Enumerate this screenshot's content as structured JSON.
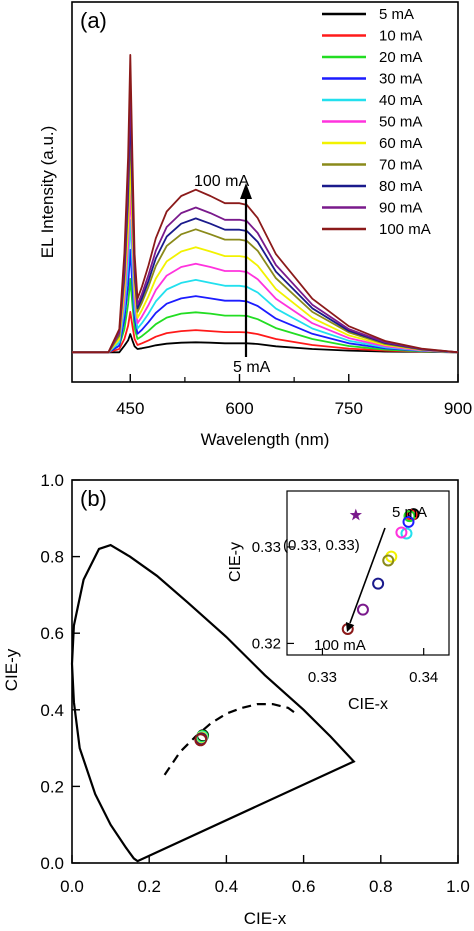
{
  "panels": {
    "a_label": "(a)",
    "b_label": "(b)"
  },
  "chart_data": [
    {
      "type": "line",
      "panel": "(a)",
      "xlabel": "Wavelength (nm)",
      "ylabel": "EL Intensity (a.u.)",
      "xlim": [
        370,
        900
      ],
      "ylim": [
        -0.09,
        1.06
      ],
      "xticks": [
        450,
        600,
        750,
        900
      ],
      "xtick_labels": [
        "450",
        "600",
        "750",
        "900"
      ],
      "grid": false,
      "legend_position": "top-right",
      "annotations": {
        "arrow_top": "100 mA",
        "arrow_bottom": "5 mA"
      },
      "x": [
        370,
        420,
        435,
        442,
        447,
        450,
        453,
        456,
        460,
        466,
        475,
        485,
        500,
        520,
        540,
        560,
        580,
        600,
        610,
        625,
        650,
        700,
        750,
        800,
        850,
        900
      ],
      "series": [
        {
          "name": "5 mA",
          "color": "#000000",
          "values": [
            0.0,
            0.0,
            0.0,
            0.02,
            0.036,
            0.055,
            0.036,
            0.018,
            0.01,
            0.012,
            0.016,
            0.021,
            0.026,
            0.029,
            0.03,
            0.029,
            0.027,
            0.027,
            0.027,
            0.025,
            0.018,
            0.01,
            0.005,
            0.002,
            0.001,
            0.0
          ]
        },
        {
          "name": "10 mA",
          "color": "#ff1a1a",
          "values": [
            0.0,
            0.0,
            0.01,
            0.04,
            0.08,
            0.122,
            0.08,
            0.04,
            0.022,
            0.027,
            0.036,
            0.047,
            0.058,
            0.064,
            0.067,
            0.064,
            0.061,
            0.061,
            0.06,
            0.055,
            0.04,
            0.022,
            0.011,
            0.005,
            0.002,
            0.0
          ]
        },
        {
          "name": "20 mA",
          "color": "#22dd22",
          "values": [
            0.0,
            0.0,
            0.02,
            0.07,
            0.145,
            0.222,
            0.145,
            0.073,
            0.04,
            0.049,
            0.065,
            0.085,
            0.105,
            0.117,
            0.121,
            0.117,
            0.111,
            0.111,
            0.11,
            0.1,
            0.073,
            0.04,
            0.019,
            0.008,
            0.003,
            0.0
          ]
        },
        {
          "name": "30 mA",
          "color": "#1c1cff",
          "values": [
            0.0,
            0.0,
            0.02,
            0.1,
            0.203,
            0.31,
            0.203,
            0.102,
            0.056,
            0.068,
            0.091,
            0.119,
            0.147,
            0.163,
            0.17,
            0.163,
            0.156,
            0.156,
            0.154,
            0.14,
            0.102,
            0.056,
            0.027,
            0.012,
            0.004,
            0.0
          ]
        },
        {
          "name": "40 mA",
          "color": "#22e0ee",
          "values": [
            0.0,
            0.0,
            0.03,
            0.13,
            0.262,
            0.4,
            0.262,
            0.132,
            0.072,
            0.088,
            0.117,
            0.154,
            0.19,
            0.21,
            0.219,
            0.21,
            0.201,
            0.201,
            0.198,
            0.181,
            0.132,
            0.072,
            0.035,
            0.015,
            0.005,
            0.0
          ]
        },
        {
          "name": "50 mA",
          "color": "#ff33dd",
          "values": [
            0.0,
            0.0,
            0.04,
            0.16,
            0.321,
            0.49,
            0.321,
            0.162,
            0.088,
            0.108,
            0.143,
            0.188,
            0.232,
            0.258,
            0.268,
            0.258,
            0.246,
            0.246,
            0.243,
            0.221,
            0.162,
            0.088,
            0.043,
            0.018,
            0.006,
            0.0
          ]
        },
        {
          "name": "60 mA",
          "color": "#f2f200",
          "values": [
            0.0,
            0.0,
            0.04,
            0.19,
            0.38,
            0.58,
            0.38,
            0.191,
            0.104,
            0.128,
            0.17,
            0.223,
            0.275,
            0.305,
            0.318,
            0.305,
            0.291,
            0.291,
            0.288,
            0.262,
            0.191,
            0.104,
            0.051,
            0.022,
            0.007,
            0.0
          ]
        },
        {
          "name": "70 mA",
          "color": "#8a8a1a",
          "values": [
            0.0,
            0.0,
            0.05,
            0.22,
            0.445,
            0.68,
            0.445,
            0.224,
            0.122,
            0.15,
            0.199,
            0.261,
            0.322,
            0.357,
            0.372,
            0.357,
            0.341,
            0.341,
            0.337,
            0.307,
            0.224,
            0.122,
            0.06,
            0.025,
            0.008,
            0.0
          ]
        },
        {
          "name": "80 mA",
          "color": "#1a1a8c",
          "values": [
            0.0,
            0.0,
            0.06,
            0.24,
            0.485,
            0.74,
            0.485,
            0.244,
            0.133,
            0.163,
            0.216,
            0.284,
            0.35,
            0.389,
            0.405,
            0.389,
            0.371,
            0.371,
            0.367,
            0.334,
            0.244,
            0.133,
            0.065,
            0.028,
            0.009,
            0.0
          ]
        },
        {
          "name": "90 mA",
          "color": "#7a1a8c",
          "values": [
            0.0,
            0.0,
            0.06,
            0.26,
            0.524,
            0.8,
            0.524,
            0.264,
            0.144,
            0.176,
            0.234,
            0.307,
            0.379,
            0.421,
            0.438,
            0.421,
            0.401,
            0.401,
            0.397,
            0.361,
            0.264,
            0.144,
            0.07,
            0.03,
            0.01,
            0.0
          ]
        },
        {
          "name": "100 mA",
          "color": "#8b1a1a",
          "values": [
            0.0,
            0.0,
            0.07,
            0.3,
            0.59,
            0.9,
            0.59,
            0.297,
            0.162,
            0.198,
            0.263,
            0.345,
            0.426,
            0.473,
            0.492,
            0.473,
            0.451,
            0.451,
            0.446,
            0.406,
            0.297,
            0.162,
            0.079,
            0.034,
            0.011,
            0.0
          ]
        }
      ]
    },
    {
      "type": "scatter",
      "panel": "(b)",
      "xlabel": "CIE-x",
      "ylabel": "CIE-y",
      "xlim": [
        0.0,
        1.0
      ],
      "ylim": [
        0.0,
        1.0
      ],
      "xticks": [
        0.0,
        0.2,
        0.4,
        0.6,
        0.8,
        1.0
      ],
      "xtick_labels": [
        "0.0",
        "0.2",
        "0.4",
        "0.6",
        "0.8",
        "1.0"
      ],
      "yticks": [
        0.0,
        0.2,
        0.4,
        0.6,
        0.8,
        1.0
      ],
      "ytick_labels": [
        "0.0",
        "0.2",
        "0.4",
        "0.6",
        "0.8",
        "1.0"
      ],
      "grid": false,
      "spectral_locus": {
        "x": [
          0.17,
          0.16,
          0.14,
          0.1,
          0.06,
          0.02,
          0.005,
          0.0,
          0.005,
          0.03,
          0.07,
          0.1,
          0.15,
          0.22,
          0.3,
          0.4,
          0.5,
          0.6,
          0.67,
          0.73
        ],
        "y": [
          0.005,
          0.012,
          0.04,
          0.1,
          0.18,
          0.3,
          0.42,
          0.52,
          0.62,
          0.74,
          0.82,
          0.83,
          0.8,
          0.75,
          0.68,
          0.59,
          0.49,
          0.4,
          0.33,
          0.265
        ]
      },
      "planckian_locus": {
        "x": [
          0.24,
          0.28,
          0.32,
          0.36,
          0.4,
          0.44,
          0.48,
          0.52,
          0.56,
          0.58
        ],
        "y": [
          0.23,
          0.29,
          0.33,
          0.365,
          0.39,
          0.405,
          0.415,
          0.415,
          0.405,
          0.39
        ]
      },
      "points": {
        "x": [
          0.339,
          0.338,
          0.337,
          0.336,
          0.335,
          0.334,
          0.333
        ],
        "y": [
          0.333,
          0.331,
          0.329,
          0.327,
          0.325,
          0.323,
          0.321
        ]
      }
    },
    {
      "type": "scatter",
      "panel": "(b) inset",
      "xlabel": "CIE-x",
      "ylabel": "CIE-y",
      "xlim": [
        0.3265,
        0.3425
      ],
      "ylim": [
        0.3188,
        0.3358
      ],
      "xticks": [
        0.33,
        0.34
      ],
      "xtick_labels": [
        "0.33",
        "0.34"
      ],
      "yticks": [
        0.32,
        0.33
      ],
      "ytick_labels": [
        "0.32",
        "0.33"
      ],
      "reference_point": {
        "x": 0.3333,
        "y": 0.3333,
        "label": "(0.33, 0.33)",
        "color": "#7a1a8c"
      },
      "annotations": {
        "arrow_top": "5 mA",
        "arrow_bottom": "100 mA"
      },
      "points": [
        {
          "x": 0.339,
          "y": 0.3334,
          "color": "#000000"
        },
        {
          "x": 0.3388,
          "y": 0.3333,
          "color": "#ff1a1a"
        },
        {
          "x": 0.3386,
          "y": 0.3332,
          "color": "#22dd22"
        },
        {
          "x": 0.3385,
          "y": 0.3326,
          "color": "#1c1cff"
        },
        {
          "x": 0.3383,
          "y": 0.3314,
          "color": "#22e0ee"
        },
        {
          "x": 0.3378,
          "y": 0.3315,
          "color": "#ff33dd"
        },
        {
          "x": 0.3368,
          "y": 0.329,
          "color": "#f2f200"
        },
        {
          "x": 0.3365,
          "y": 0.3286,
          "color": "#8a8a1a"
        },
        {
          "x": 0.3355,
          "y": 0.3262,
          "color": "#1a1a8c"
        },
        {
          "x": 0.334,
          "y": 0.3235,
          "color": "#7a1a8c"
        },
        {
          "x": 0.3325,
          "y": 0.3215,
          "color": "#8b1a1a"
        }
      ]
    }
  ]
}
